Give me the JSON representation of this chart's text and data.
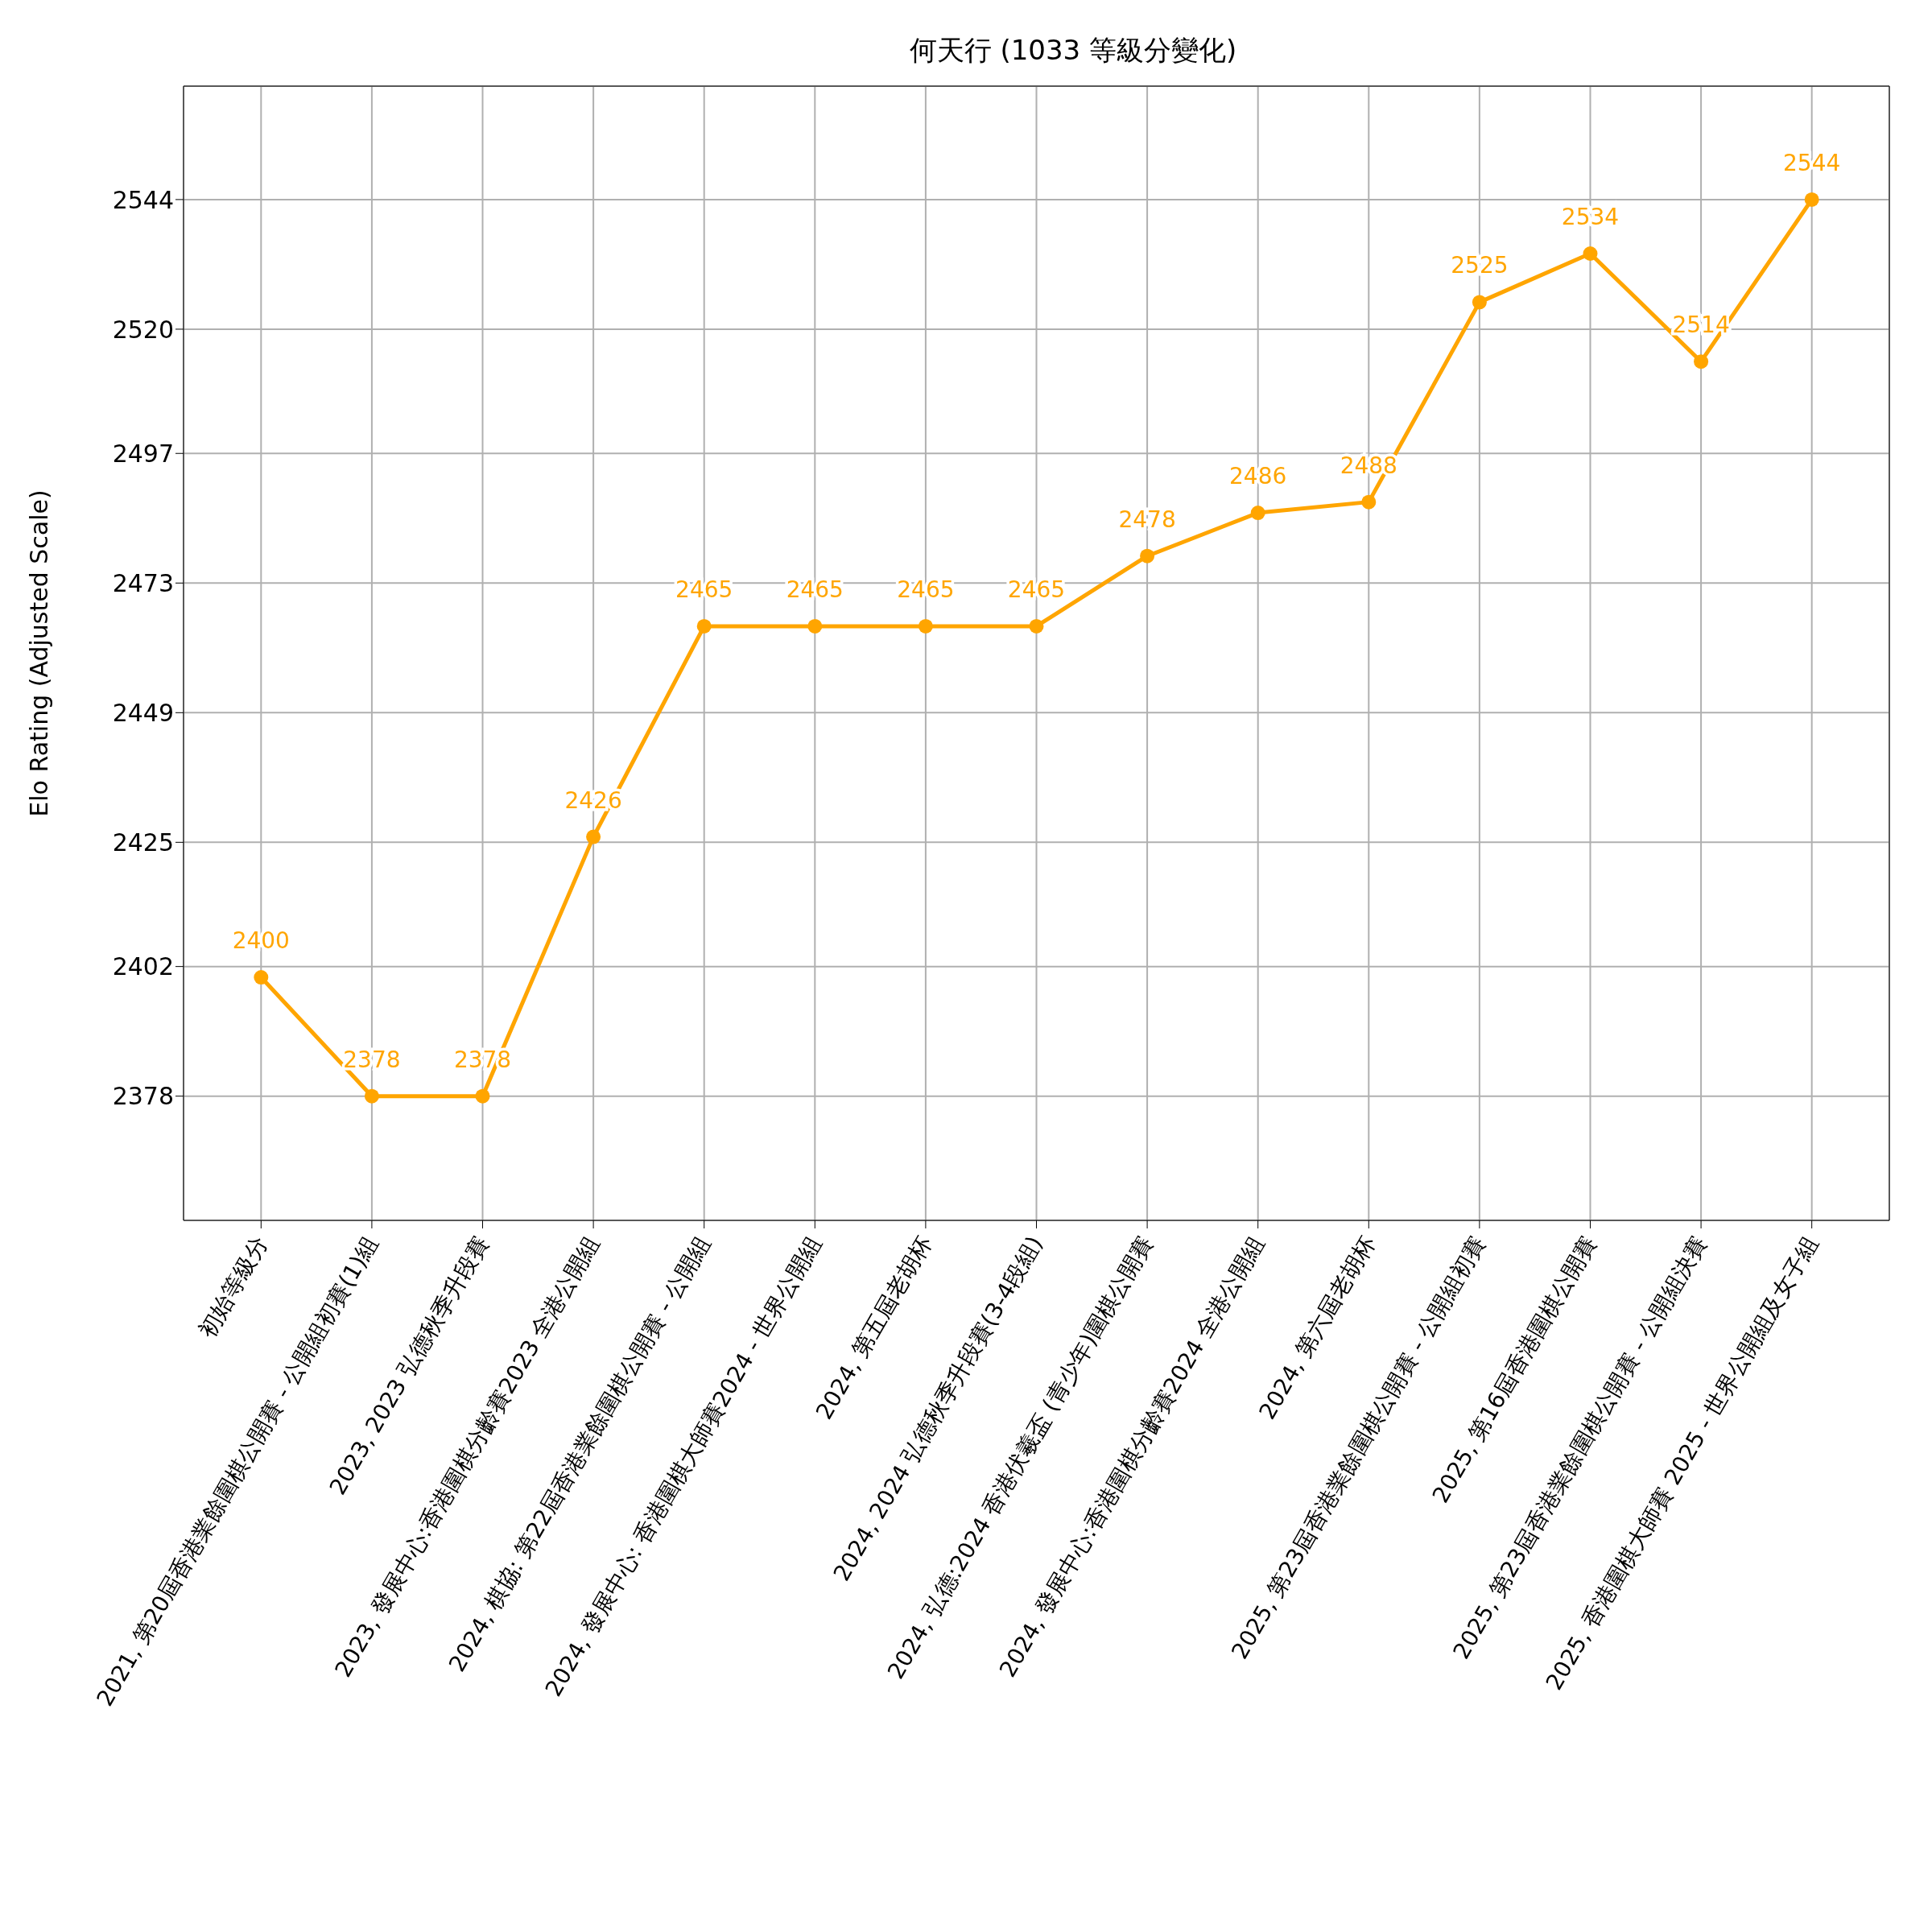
{
  "chart_data": {
    "type": "line",
    "title": "何天行 (1033 等級分變化)",
    "ylabel": "Elo Rating (Adjusted Scale)",
    "categories": [
      "初始等級分",
      "2021, 第20屆香港業餘圍棋公開賽 - 公開組初賽(1)組",
      "2023, 2023 弘德秋季升段賽",
      "2023, 發展中心:香港圍棋分齡賽2023 全港公開組",
      "2024, 棋協: 第22屆香港業餘圍棋公開賽 - 公開組",
      "2024, 發展中心: 香港圍棋大師賽2024 - 世界公開組",
      "2024, 第五屆老胡杯",
      "2024, 2024 弘德秋季升段賽(3-4段組)",
      "2024, 弘德:2024 香港伏羲盃 (青少年)圍棋公開賽",
      "2024, 發展中心:香港圍棋分齡賽2024 全港公開組",
      "2024, 第六屆老胡杯",
      "2025, 第23屆香港業餘圍棋公開賽 - 公開組初賽",
      "2025, 第16屆香港圍棋公開賽",
      "2025, 第23屆香港業餘圍棋公開賽 - 公開組決賽",
      "2025, 香港圍棋大師賽 2025 - 世界公開組及女子組"
    ],
    "series": [
      {
        "color": "#ffa500",
        "values": [
          2400,
          2378,
          2378,
          2426,
          2465,
          2465,
          2465,
          2465,
          2478,
          2486,
          2488,
          2525,
          2534,
          2514,
          2544
        ]
      }
    ],
    "ylim": [
      2355,
      2565
    ],
    "yticks": [
      2378,
      2402,
      2425,
      2449,
      2473,
      2497,
      2520,
      2544
    ],
    "grid": true,
    "marker": "circle",
    "line_style": "solid",
    "data_labels": true
  }
}
